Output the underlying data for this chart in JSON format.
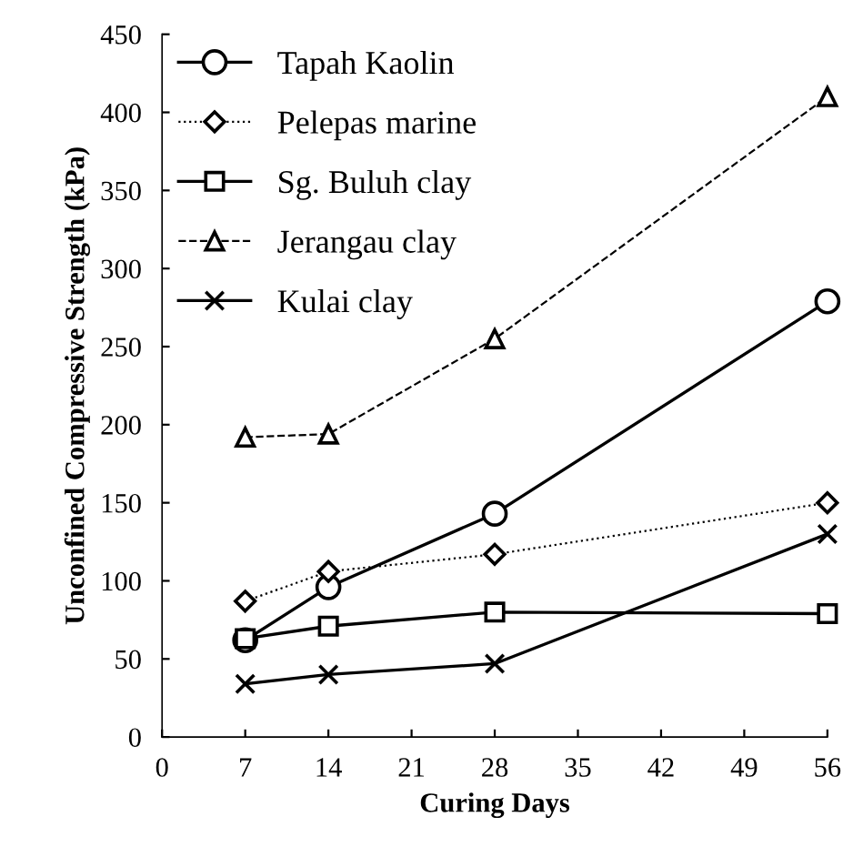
{
  "chart_data": {
    "type": "line",
    "xlabel": "Curing Days",
    "ylabel": "Unconfined Compressive Strength (kPa)",
    "x": [
      7,
      14,
      28,
      56
    ],
    "series": [
      {
        "name": "Tapah Kaolin",
        "color": "#000000",
        "values": [
          62,
          96,
          143,
          279
        ],
        "marker": "circle",
        "line_style": "solid"
      },
      {
        "name": "Pelepas marine",
        "color": "#000000",
        "values": [
          87,
          106,
          117,
          150
        ],
        "marker": "diamond",
        "line_style": "dotted"
      },
      {
        "name": "Sg. Buluh clay",
        "color": "#000000",
        "values": [
          63,
          71,
          80,
          79
        ],
        "marker": "square",
        "line_style": "solid"
      },
      {
        "name": "Jerangau clay",
        "color": "#000000",
        "values": [
          192,
          194,
          255,
          410
        ],
        "marker": "triangle",
        "line_style": "dashed"
      },
      {
        "name": "Kulai clay",
        "color": "#000000",
        "values": [
          34,
          40,
          47,
          130
        ],
        "marker": "cross",
        "line_style": "solid"
      }
    ],
    "xlim": [
      0,
      56
    ],
    "xticks": [
      0,
      7,
      14,
      21,
      28,
      35,
      42,
      49,
      56
    ],
    "ylim": [
      0,
      450
    ],
    "yticks": [
      0,
      50,
      100,
      150,
      200,
      250,
      300,
      350,
      400,
      450
    ],
    "grid": false,
    "legend": "top left"
  }
}
